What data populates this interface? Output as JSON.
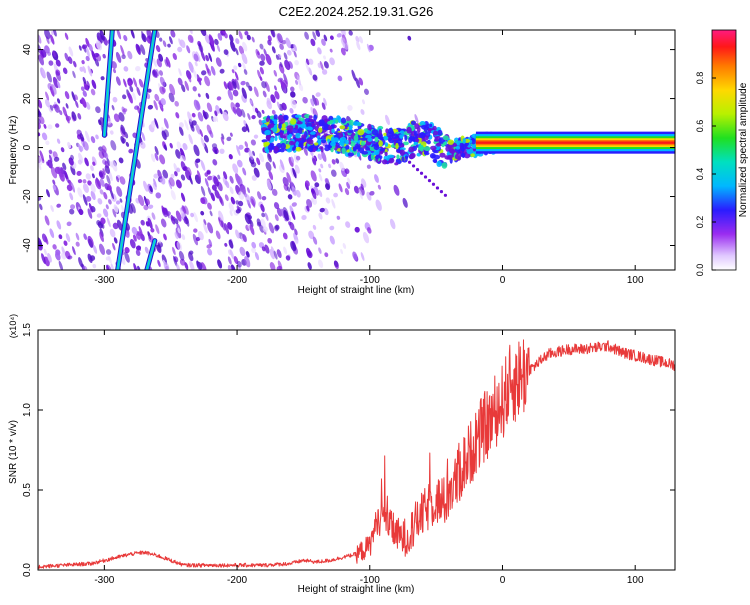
{
  "title": "C2E2.2024.252.19.31.G26",
  "colors": {
    "signal": "#e83a3a",
    "spectro_low": "#8a2be2",
    "spectro_high": "#ff2020",
    "axis": "#000000"
  },
  "chart_data": [
    {
      "type": "heatmap",
      "xlabel": "Height of straight line (km)",
      "ylabel": "Frequency (Hz)",
      "xlim": [
        -350,
        130
      ],
      "ylim": [
        -50,
        48
      ],
      "x_ticks": [
        -300,
        -200,
        -100,
        0,
        100
      ],
      "y_ticks": [
        -40,
        -20,
        0,
        20,
        40
      ],
      "colorbar": {
        "label": "Normalized spectral amplitude",
        "range": [
          0,
          1
        ],
        "ticks": [
          0.0,
          0.2,
          0.4,
          0.6,
          0.8
        ],
        "tick_labels": [
          "0.0",
          "0.2",
          "0.4",
          "0.6",
          "0.8"
        ]
      },
      "features": {
        "direct_tracks": [
          {
            "x_start": -290,
            "y_start": -50,
            "x_end": -262,
            "y_end": 48
          },
          {
            "x_start": -300,
            "y_start": 5,
            "x_end": -294,
            "y_end": 48
          },
          {
            "x_start": -268,
            "y_start": -50,
            "x_end": -262,
            "y_end": -38
          }
        ],
        "ridge_line": {
          "x": [
            -180,
            -160,
            -140,
            -120,
            -100,
            -90,
            -80,
            -70,
            -60,
            -50,
            -40,
            -30,
            -20,
            -10,
            0,
            20,
            60,
            100,
            130
          ],
          "y": [
            5,
            6,
            6,
            5,
            2,
            1,
            0,
            3,
            4,
            1,
            -2,
            0,
            1,
            2,
            2,
            2,
            2,
            2,
            2
          ]
        },
        "scatter_region_x": [
          -350,
          -120
        ]
      }
    },
    {
      "type": "line",
      "xlabel": "Height of straight line (km)",
      "ylabel": "SNR (10 * v/v)",
      "y_multiplier": "(x10⁴)",
      "xlim": [
        -350,
        130
      ],
      "ylim": [
        0,
        1.5
      ],
      "x_ticks": [
        -300,
        -200,
        -100,
        0,
        100
      ],
      "y_ticks": [
        0.0,
        0.5,
        1.0,
        1.5
      ],
      "y_tick_labels": [
        "0.0",
        "0.5",
        "1.0",
        "1.5"
      ],
      "series": [
        {
          "x": [
            -350,
            -330,
            -310,
            -300,
            -290,
            -280,
            -270,
            -260,
            -250,
            -240,
            -230,
            -220,
            -200,
            -180,
            -160,
            -150,
            -140,
            -130,
            -120,
            -110,
            -100,
            -95,
            -90,
            -85,
            -80,
            -75,
            -70,
            -65,
            -60,
            -55,
            -50,
            -45,
            -40,
            -35,
            -30,
            -25,
            -20,
            -15,
            -10,
            -5,
            0,
            5,
            10,
            15,
            20,
            25,
            30,
            35,
            40,
            50,
            60,
            70,
            80,
            90,
            100,
            110,
            120,
            130
          ],
          "y": [
            0.02,
            0.03,
            0.04,
            0.06,
            0.08,
            0.1,
            0.11,
            0.09,
            0.06,
            0.03,
            0.03,
            0.03,
            0.03,
            0.03,
            0.04,
            0.06,
            0.05,
            0.06,
            0.08,
            0.1,
            0.15,
            0.3,
            0.35,
            0.28,
            0.22,
            0.2,
            0.22,
            0.3,
            0.35,
            0.4,
            0.45,
            0.4,
            0.5,
            0.55,
            0.65,
            0.72,
            0.8,
            0.88,
            0.92,
            1.0,
            1.05,
            1.15,
            1.18,
            1.22,
            1.25,
            1.28,
            1.32,
            1.35,
            1.36,
            1.38,
            1.38,
            1.39,
            1.4,
            1.36,
            1.34,
            1.32,
            1.3,
            1.28
          ]
        }
      ]
    }
  ]
}
